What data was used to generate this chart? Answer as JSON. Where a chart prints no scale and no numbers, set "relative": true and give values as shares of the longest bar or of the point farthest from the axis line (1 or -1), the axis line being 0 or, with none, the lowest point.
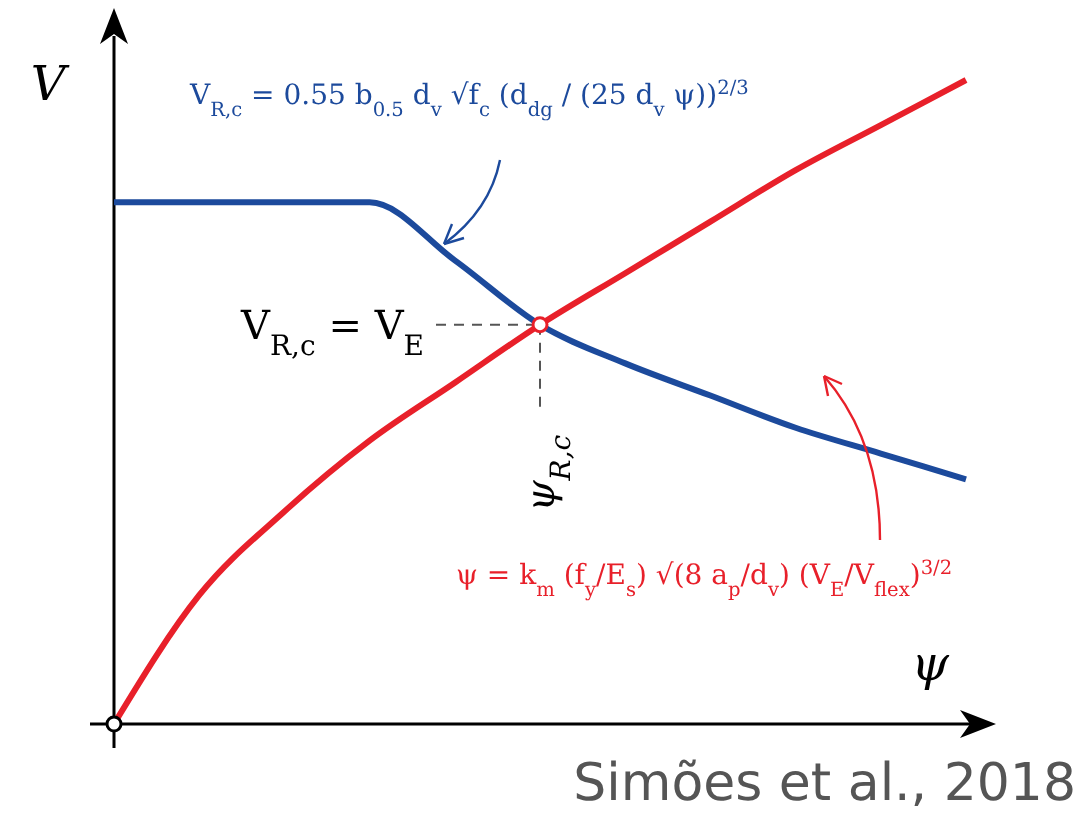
{
  "chart_data": {
    "type": "line",
    "relative": true,
    "xlabel": "ψ",
    "ylabel": "V",
    "marker": "none",
    "line_style": "solid",
    "categories": [
      null,
      null,
      null,
      null,
      null,
      null,
      null,
      null,
      null,
      null,
      null
    ],
    "series": [
      {
        "color": "#1c4a9c",
        "values": [
          0.81,
          0.81,
          0.81,
          0.81,
          0.72,
          0.62,
          0.56,
          0.51,
          0.46,
          0.42,
          0.38
        ]
      },
      {
        "color": "#e8202a",
        "values": [
          0,
          0.2,
          0.33,
          0.44,
          0.53,
          0.62,
          0.7,
          0.78,
          0.86,
          0.93,
          1
        ]
      }
    ],
    "ref_lines": [
      {
        "axis": "y",
        "value": 0.62,
        "label": "V$_{R,c}$ = V$_{E}$",
        "line_style": "dashed"
      }
    ],
    "annotations": [
      "V$_{R,c}$ = 0.55 b$_{0.5}$ d$_{v}$ √f$_{c}$ (d$_{dg}$ / (25 d$_{v}$ ψ))$^{2/3}$",
      "ψ = k$_{m}$ (f$_{y}$/E$_{s}$) √(8 a$_{p}$/d$_{v}$) (V$_{E}$/V$_{flex}$)$^{3/2}$",
      "ψ$_{R,c}$",
      "Simões et al., 2018"
    ]
  }
}
